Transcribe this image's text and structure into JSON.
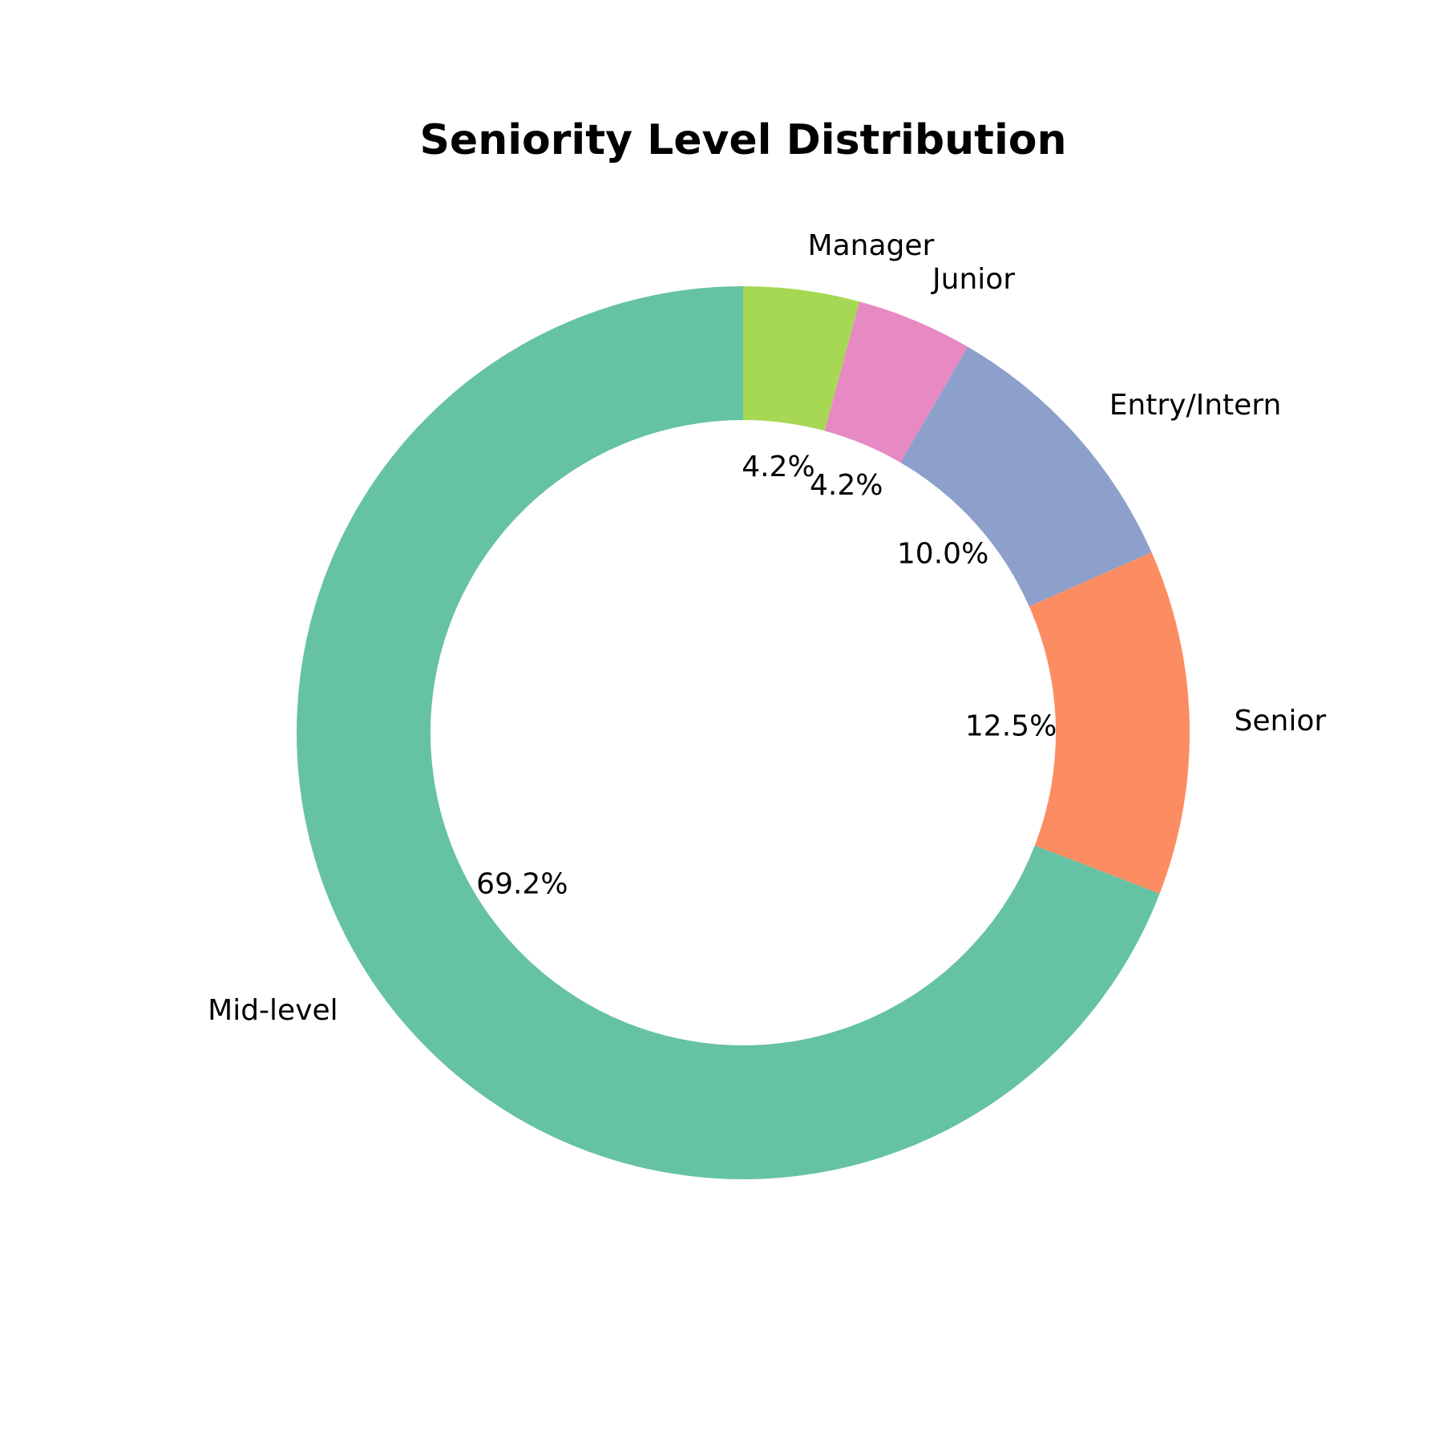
{
  "chart_data": {
    "type": "pie",
    "style": "donut",
    "title": "Seniority Level Distribution",
    "slices": [
      {
        "label": "Manager",
        "value": 4.2,
        "pct_label": "4.2%",
        "color": "#a6d854"
      },
      {
        "label": "Junior",
        "value": 4.2,
        "pct_label": "4.2%",
        "color": "#e78ac3"
      },
      {
        "label": "Entry/Intern",
        "value": 10.0,
        "pct_label": "10.0%",
        "color": "#8da0cb"
      },
      {
        "label": "Senior",
        "value": 12.5,
        "pct_label": "12.5%",
        "color": "#fc8d62"
      },
      {
        "label": "Mid-level",
        "value": 69.2,
        "pct_label": "69.2%",
        "color": "#66c2a5"
      }
    ],
    "start_angle_deg": 90,
    "direction": "clockwise",
    "legend": "none"
  }
}
